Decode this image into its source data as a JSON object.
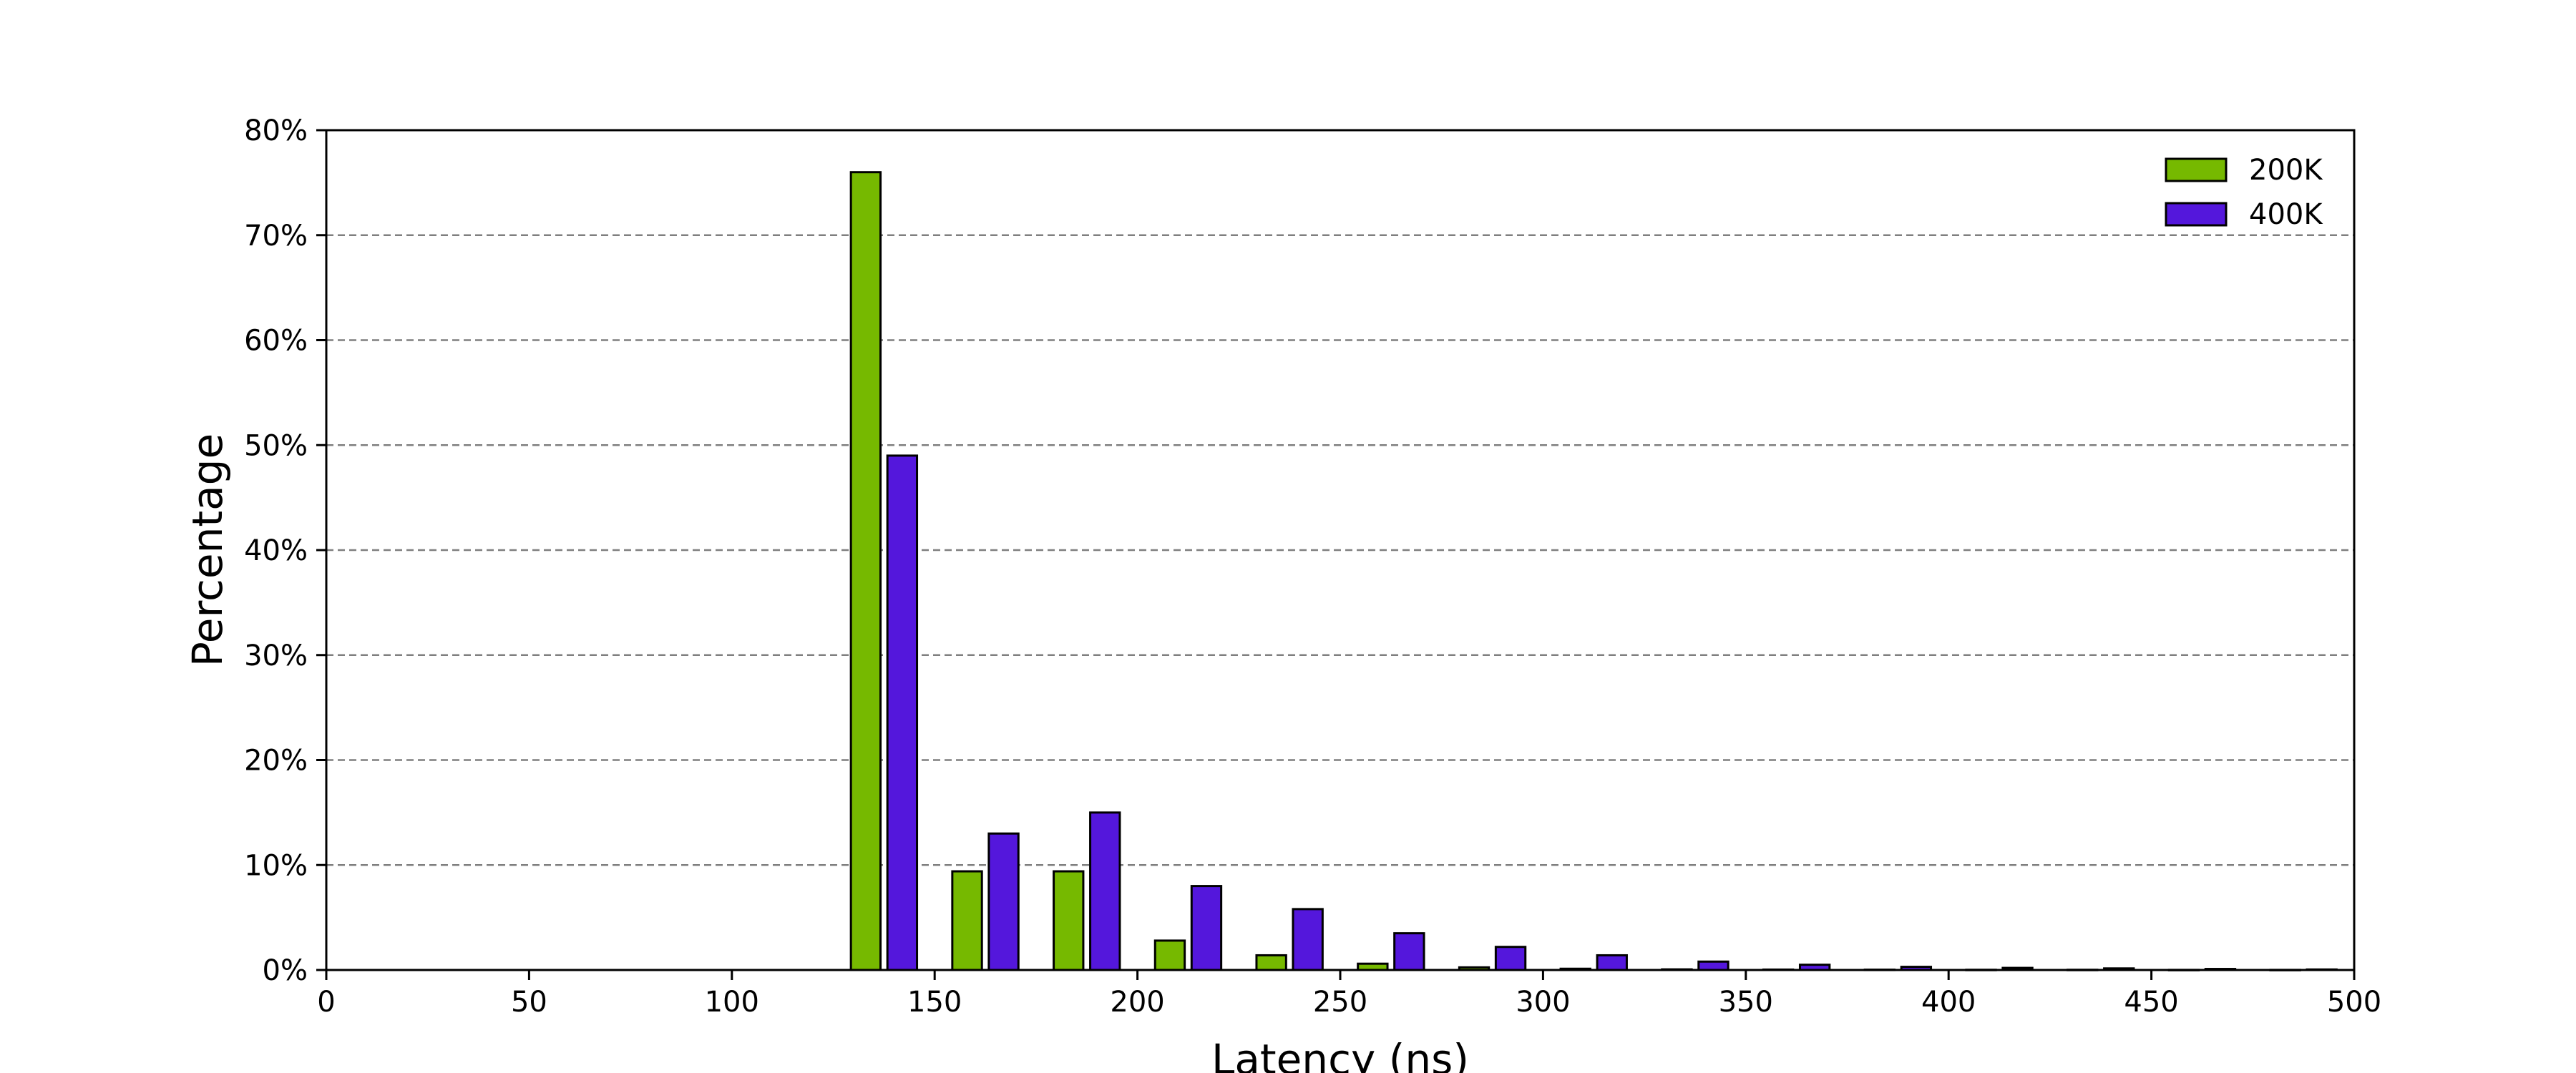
{
  "chart_data": {
    "type": "bar",
    "title": "",
    "xlabel": "Latency (ns)",
    "ylabel": "Percentage",
    "xlim": [
      0,
      500
    ],
    "ylim": [
      0,
      80
    ],
    "x_ticks": [
      "0",
      "50",
      "100",
      "150",
      "200",
      "250",
      "300",
      "350",
      "400",
      "450",
      "500"
    ],
    "y_ticks": [
      "0%",
      "10%",
      "20%",
      "30%",
      "40%",
      "50%",
      "60%",
      "70%",
      "80%"
    ],
    "grid": "y-dashed",
    "legend_position": "top-right",
    "bin_width": 25,
    "bin_starts": [
      0,
      25,
      50,
      75,
      100,
      125,
      150,
      175,
      200,
      225,
      250,
      275,
      300,
      325,
      350,
      375,
      400,
      425,
      450,
      475
    ],
    "series": [
      {
        "name": "200K",
        "color": "#76b900",
        "values": [
          0,
          0,
          0,
          0,
          0,
          76.0,
          9.4,
          9.4,
          2.8,
          1.4,
          0.6,
          0.25,
          0.12,
          0.06,
          0.04,
          0.03,
          0.02,
          0.02,
          0.01,
          0.01
        ]
      },
      {
        "name": "400K",
        "color": "#5417dc",
        "values": [
          0,
          0,
          0,
          0,
          0,
          49.0,
          13.0,
          15.0,
          8.0,
          5.8,
          3.5,
          2.2,
          1.4,
          0.8,
          0.5,
          0.3,
          0.2,
          0.15,
          0.1,
          0.05
        ]
      }
    ]
  }
}
